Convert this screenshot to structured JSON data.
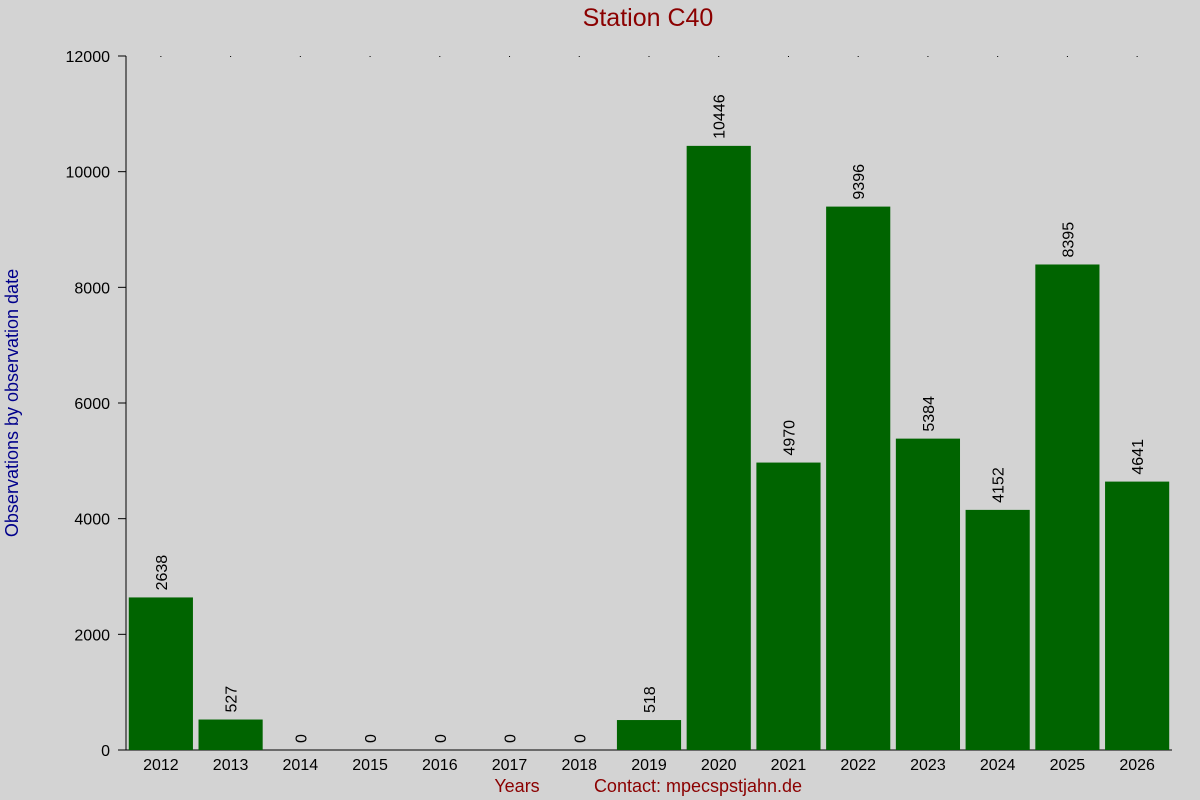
{
  "chart_data": {
    "type": "bar",
    "title": "Station C40",
    "xlabel": "Years",
    "ylabel": "Observations by observation date",
    "annotation": "Contact: mpecspstjahn.de",
    "categories": [
      "2012",
      "2013",
      "2014",
      "2015",
      "2016",
      "2017",
      "2018",
      "2019",
      "2020",
      "2021",
      "2022",
      "2023",
      "2024",
      "2025",
      "2026"
    ],
    "values": [
      2638,
      527,
      0,
      0,
      0,
      0,
      0,
      518,
      10446,
      4970,
      9396,
      5384,
      4152,
      8395,
      4641
    ],
    "color": "#006400",
    "ylim": [
      0,
      12000
    ],
    "yticks": [
      0,
      2000,
      4000,
      6000,
      8000,
      10000,
      12000
    ],
    "grid": false
  }
}
